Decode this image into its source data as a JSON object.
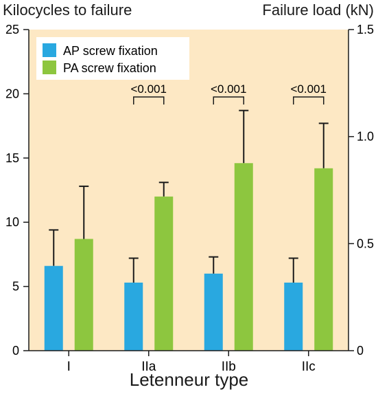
{
  "chart_data": {
    "type": "bar",
    "xlabel": "Letenneur type",
    "ylabel": "Kilocycles to failure",
    "ylabel_right": "Failure load (kN)",
    "categories": [
      "I",
      "IIa",
      "IIb",
      "IIc"
    ],
    "ylim": [
      0,
      25
    ],
    "ylim_right": [
      0,
      1.5
    ],
    "yticks": [
      "0",
      "5",
      "10",
      "15",
      "20",
      "25"
    ],
    "yticks_right": [
      "0",
      "0.5",
      "1.0",
      "1.5"
    ],
    "series": [
      {
        "name": "AP screw fixation",
        "color": "#29a8e0",
        "values": [
          6.6,
          5.3,
          6.0,
          5.3
        ],
        "error_upper": [
          9.4,
          7.2,
          7.3,
          7.2
        ]
      },
      {
        "name": "PA screw fixation",
        "color": "#8dc63f",
        "values": [
          8.7,
          12.0,
          14.6,
          14.2
        ],
        "error_upper": [
          12.8,
          13.1,
          18.7,
          17.7
        ]
      }
    ],
    "annotations": [
      {
        "category": "IIa",
        "text": "<0.001"
      },
      {
        "category": "IIb",
        "text": "<0.001"
      },
      {
        "category": "IIc",
        "text": "<0.001"
      }
    ],
    "legend": "top-left",
    "plot_background": "#fde8c4",
    "grid": false
  }
}
